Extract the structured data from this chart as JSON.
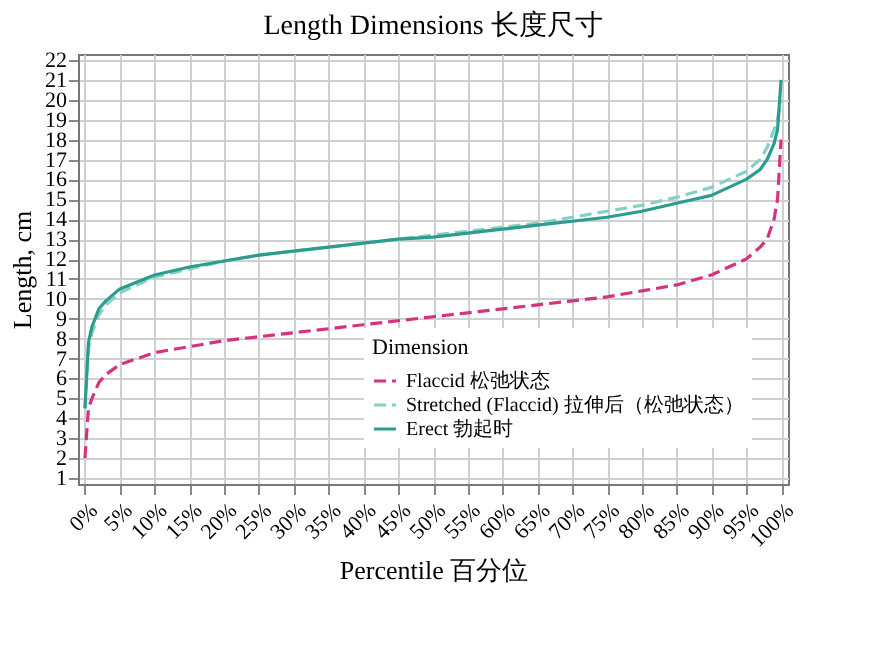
{
  "chart_data": {
    "type": "line",
    "title": "Length Dimensions 长度尺寸",
    "xlabel": "Percentile 百分位",
    "ylabel": "Length, cm",
    "legend_title": "Dimension",
    "x": [
      0,
      0.5,
      1,
      2,
      3,
      5,
      10,
      15,
      20,
      25,
      30,
      35,
      40,
      45,
      50,
      55,
      60,
      65,
      70,
      75,
      80,
      85,
      90,
      95,
      97,
      98,
      99,
      99.5,
      100
    ],
    "series": [
      {
        "name": "Flaccid 松弛状态",
        "color": "#d6337f",
        "line_style": "dashed",
        "values": [
          2,
          4.5,
          5,
          5.8,
          6.2,
          6.7,
          7.3,
          7.6,
          7.9,
          8.1,
          8.3,
          8.5,
          8.7,
          8.9,
          9.1,
          9.3,
          9.5,
          9.7,
          9.9,
          10.1,
          10.4,
          10.7,
          11.2,
          12,
          12.6,
          13,
          14,
          15,
          18
        ]
      },
      {
        "name": "Stretched (Flaccid) 拉伸后（松弛状态）",
        "color": "#86d0c4",
        "line_style": "dashed",
        "values": [
          4.5,
          7.5,
          8.3,
          9.2,
          9.7,
          10.3,
          11.1,
          11.5,
          11.9,
          12.2,
          12.4,
          12.6,
          12.8,
          13,
          13.2,
          13.4,
          13.6,
          13.8,
          14.1,
          14.4,
          14.7,
          15.1,
          15.6,
          16.4,
          17,
          17.6,
          18.5,
          19,
          20
        ]
      },
      {
        "name": "Erect 勃起时",
        "color": "#2a9d8f",
        "line_style": "solid",
        "values": [
          4.5,
          7.8,
          8.6,
          9.5,
          9.9,
          10.5,
          11.2,
          11.6,
          11.9,
          12.2,
          12.4,
          12.6,
          12.8,
          13,
          13.1,
          13.3,
          13.5,
          13.7,
          13.9,
          14.1,
          14.4,
          14.8,
          15.2,
          16,
          16.5,
          17,
          17.8,
          18.5,
          21
        ]
      }
    ],
    "xlim": [
      -1,
      101
    ],
    "ylim": [
      0.7,
      22.3
    ],
    "xticks": [
      {
        "value": 0,
        "label": "0%"
      },
      {
        "value": 5,
        "label": "5%"
      },
      {
        "value": 10,
        "label": "10%"
      },
      {
        "value": 15,
        "label": "15%"
      },
      {
        "value": 20,
        "label": "20%"
      },
      {
        "value": 25,
        "label": "25%"
      },
      {
        "value": 30,
        "label": "30%"
      },
      {
        "value": 35,
        "label": "35%"
      },
      {
        "value": 40,
        "label": "40%"
      },
      {
        "value": 45,
        "label": "45%"
      },
      {
        "value": 50,
        "label": "50%"
      },
      {
        "value": 55,
        "label": "55%"
      },
      {
        "value": 60,
        "label": "60%"
      },
      {
        "value": 65,
        "label": "65%"
      },
      {
        "value": 70,
        "label": "70%"
      },
      {
        "value": 75,
        "label": "75%"
      },
      {
        "value": 80,
        "label": "80%"
      },
      {
        "value": 85,
        "label": "85%"
      },
      {
        "value": 90,
        "label": "90%"
      },
      {
        "value": 95,
        "label": "95%"
      },
      {
        "value": 100,
        "label": "100%"
      }
    ],
    "yticks": [
      1,
      2,
      3,
      4,
      5,
      6,
      7,
      8,
      9,
      10,
      11,
      12,
      13,
      14,
      15,
      16,
      17,
      18,
      19,
      20,
      21,
      22
    ],
    "grid": true,
    "legend": "bottom right",
    "marker": "none"
  }
}
